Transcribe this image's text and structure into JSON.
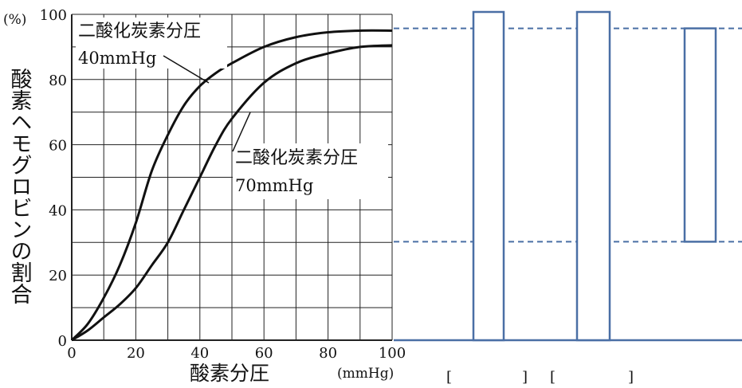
{
  "chart_data": {
    "type": "line",
    "ylabel": "酸素ヘモグロビンの割合",
    "yunit": "(%)",
    "xlabel": "酸素分圧",
    "xunit": "(mmHg)",
    "xlim": [
      0,
      100
    ],
    "ylim": [
      0,
      100
    ],
    "xticks": [
      "0",
      "20",
      "40",
      "60",
      "80",
      "100"
    ],
    "yticks": [
      "0",
      "20",
      "40",
      "60",
      "80",
      "100"
    ],
    "grid": true,
    "series": [
      {
        "name": "二酸化炭素分圧 40mmHg",
        "label_line1": "二酸化炭素分圧",
        "label_line2": "40mmHg",
        "x": [
          0,
          5,
          10,
          15,
          20,
          25,
          30,
          35,
          40,
          45,
          50,
          60,
          70,
          80,
          90,
          100
        ],
        "y": [
          0,
          5,
          13,
          23,
          36,
          52,
          63,
          72,
          78,
          82,
          85,
          90,
          93,
          94.5,
          95,
          95
        ]
      },
      {
        "name": "二酸化炭素分圧 70mmHg",
        "label_line1": "二酸化炭素分圧",
        "label_line2": "70mmHg",
        "x": [
          0,
          5,
          10,
          15,
          20,
          25,
          30,
          35,
          40,
          45,
          50,
          60,
          70,
          80,
          90,
          100
        ],
        "y": [
          0,
          3,
          7,
          11,
          16,
          23,
          30,
          40,
          50,
          60,
          68,
          79,
          85,
          88,
          90,
          90.5
        ]
      }
    ]
  },
  "answer_area": {
    "bracket_open": "[",
    "bracket_close": "]",
    "bars": [
      {
        "bottom": 0,
        "top": 100
      },
      {
        "bottom": 0,
        "top": 100
      },
      {
        "bottom": 30,
        "top": 95
      }
    ],
    "reference_lines": [
      95,
      30
    ]
  },
  "colors": {
    "curve": "#111111",
    "grid": "#222222",
    "diagram": "#4a6fa5"
  }
}
